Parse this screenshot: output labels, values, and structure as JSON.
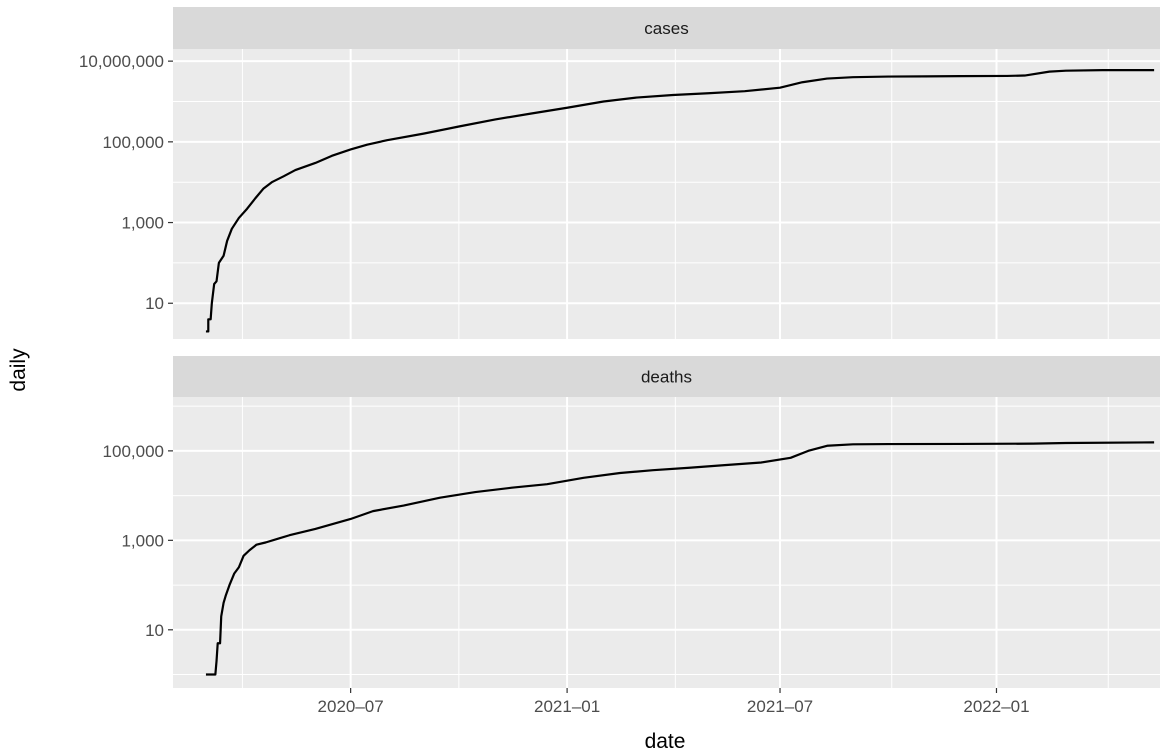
{
  "chart_data": {
    "type": "line",
    "xlabel": "date",
    "ylabel": "daily",
    "y_scale": "log10",
    "grid": true,
    "legend": "none",
    "x_range": [
      "2020-02-01",
      "2022-05-20"
    ],
    "x_ticks": [
      {
        "date": "2020-07-01",
        "label": "2020–07"
      },
      {
        "date": "2021-01-01",
        "label": "2021–01"
      },
      {
        "date": "2021-07-01",
        "label": "2021–07"
      },
      {
        "date": "2022-01-01",
        "label": "2022–01"
      }
    ],
    "line_color": "#000000",
    "panel_background": "#ebebeb",
    "strip_background": "#d9d9d9",
    "panels": [
      {
        "strip": "cases",
        "ylim": [
          1.3,
          20000000
        ],
        "y_ticks": [
          {
            "value": 10,
            "label": "10"
          },
          {
            "value": 1000,
            "label": "1,000"
          },
          {
            "value": 100000,
            "label": "100,000"
          },
          {
            "value": 10000000,
            "label": "10,000,000"
          }
        ],
        "points": [
          [
            "2020-02-29",
            2
          ],
          [
            "2020-03-02",
            2
          ],
          [
            "2020-03-02",
            4
          ],
          [
            "2020-03-04",
            4
          ],
          [
            "2020-03-05",
            10
          ],
          [
            "2020-03-07",
            30
          ],
          [
            "2020-03-09",
            35
          ],
          [
            "2020-03-11",
            100
          ],
          [
            "2020-03-15",
            150
          ],
          [
            "2020-03-18",
            350
          ],
          [
            "2020-03-22",
            700
          ],
          [
            "2020-03-28",
            1300
          ],
          [
            "2020-04-04",
            2200
          ],
          [
            "2020-04-11",
            4000
          ],
          [
            "2020-04-18",
            7000
          ],
          [
            "2020-04-25",
            10000
          ],
          [
            "2020-05-05",
            14000
          ],
          [
            "2020-05-15",
            20000
          ],
          [
            "2020-06-01",
            30000
          ],
          [
            "2020-06-15",
            45000
          ],
          [
            "2020-07-01",
            65000
          ],
          [
            "2020-07-15",
            85000
          ],
          [
            "2020-08-01",
            110000
          ],
          [
            "2020-09-01",
            160000
          ],
          [
            "2020-10-01",
            240000
          ],
          [
            "2020-11-01",
            360000
          ],
          [
            "2020-12-01",
            500000
          ],
          [
            "2021-01-01",
            700000
          ],
          [
            "2021-02-01",
            1000000
          ],
          [
            "2021-03-01",
            1250000
          ],
          [
            "2021-04-01",
            1450000
          ],
          [
            "2021-05-01",
            1600000
          ],
          [
            "2021-06-01",
            1800000
          ],
          [
            "2021-07-01",
            2200000
          ],
          [
            "2021-07-20",
            3000000
          ],
          [
            "2021-08-10",
            3700000
          ],
          [
            "2021-09-01",
            4000000
          ],
          [
            "2021-10-01",
            4150000
          ],
          [
            "2021-11-01",
            4200000
          ],
          [
            "2021-12-01",
            4250000
          ],
          [
            "2022-01-10",
            4300000
          ],
          [
            "2022-01-25",
            4400000
          ],
          [
            "2022-02-15",
            5500000
          ],
          [
            "2022-03-01",
            5800000
          ],
          [
            "2022-04-01",
            6000000
          ],
          [
            "2022-05-15",
            6000000
          ]
        ]
      },
      {
        "strip": "deaths",
        "ylim": [
          0.5,
          1600000
        ],
        "y_ticks": [
          {
            "value": 10,
            "label": "10"
          },
          {
            "value": 1000,
            "label": "1,000"
          },
          {
            "value": 100000,
            "label": "100,000"
          }
        ],
        "points": [
          [
            "2020-02-29",
            1
          ],
          [
            "2020-03-08",
            1
          ],
          [
            "2020-03-09",
            2
          ],
          [
            "2020-03-10",
            5
          ],
          [
            "2020-03-12",
            5
          ],
          [
            "2020-03-13",
            20
          ],
          [
            "2020-03-15",
            40
          ],
          [
            "2020-03-17",
            60
          ],
          [
            "2020-03-20",
            100
          ],
          [
            "2020-03-24",
            180
          ],
          [
            "2020-03-28",
            250
          ],
          [
            "2020-04-01",
            450
          ],
          [
            "2020-04-06",
            600
          ],
          [
            "2020-04-12",
            800
          ],
          [
            "2020-04-20",
            900
          ],
          [
            "2020-05-01",
            1100
          ],
          [
            "2020-05-10",
            1300
          ],
          [
            "2020-06-01",
            1800
          ],
          [
            "2020-07-01",
            3000
          ],
          [
            "2020-07-20",
            4500
          ],
          [
            "2020-08-15",
            6000
          ],
          [
            "2020-09-15",
            9000
          ],
          [
            "2020-10-15",
            12000
          ],
          [
            "2020-11-15",
            15000
          ],
          [
            "2020-12-15",
            18000
          ],
          [
            "2021-01-15",
            25000
          ],
          [
            "2021-02-15",
            32000
          ],
          [
            "2021-03-15",
            37000
          ],
          [
            "2021-04-15",
            42000
          ],
          [
            "2021-05-15",
            48000
          ],
          [
            "2021-06-15",
            55000
          ],
          [
            "2021-07-10",
            70000
          ],
          [
            "2021-07-25",
            100000
          ],
          [
            "2021-08-10",
            130000
          ],
          [
            "2021-09-01",
            140000
          ],
          [
            "2021-10-01",
            142000
          ],
          [
            "2021-12-01",
            143000
          ],
          [
            "2022-02-01",
            145000
          ],
          [
            "2022-03-01",
            150000
          ],
          [
            "2022-05-15",
            155000
          ]
        ]
      }
    ]
  }
}
